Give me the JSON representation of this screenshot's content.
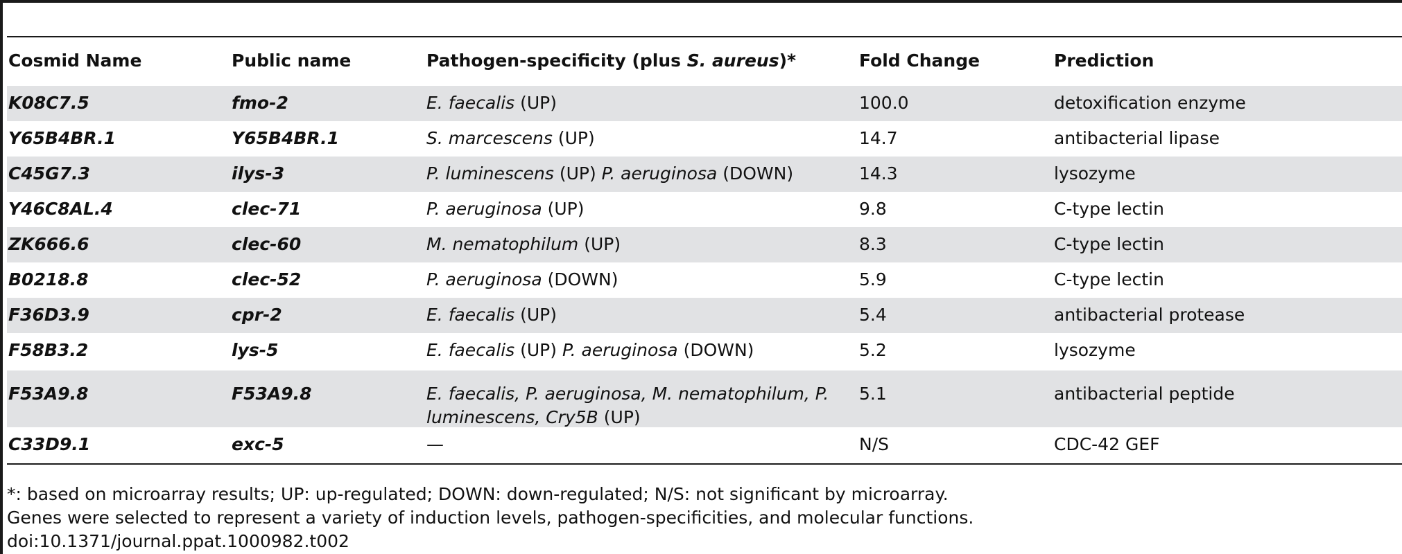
{
  "table": {
    "headers": {
      "cosmid": "Cosmid Name",
      "public": "Public name",
      "pathogen_prefix": "Pathogen-specificity (plus ",
      "pathogen_species": "S. aureus",
      "pathogen_suffix": ")*",
      "fold": "Fold Change",
      "prediction": "Prediction"
    },
    "rows": [
      {
        "cosmid": "K08C7.5",
        "public": "fmo-2",
        "p1_species": "E. faecalis",
        "p1_dir": " (UP)",
        "p2_species": "",
        "p2_dir": "",
        "fold": "100.0",
        "prediction": "detoxification enzyme"
      },
      {
        "cosmid": "Y65B4BR.1",
        "public": "Y65B4BR.1",
        "p1_species": "S. marcescens",
        "p1_dir": " (UP)",
        "p2_species": "",
        "p2_dir": "",
        "fold": "14.7",
        "prediction": "antibacterial lipase"
      },
      {
        "cosmid": "C45G7.3",
        "public": "ilys-3",
        "p1_species": "P. luminescens",
        "p1_dir": " (UP) ",
        "p2_species": "P. aeruginosa",
        "p2_dir": " (DOWN)",
        "fold": "14.3",
        "prediction": "lysozyme"
      },
      {
        "cosmid": "Y46C8AL.4",
        "public": "clec-71",
        "p1_species": "P. aeruginosa",
        "p1_dir": " (UP)",
        "p2_species": "",
        "p2_dir": "",
        "fold": "9.8",
        "prediction": "C-type lectin"
      },
      {
        "cosmid": "ZK666.6",
        "public": "clec-60",
        "p1_species": "M. nematophilum",
        "p1_dir": " (UP)",
        "p2_species": "",
        "p2_dir": "",
        "fold": "8.3",
        "prediction": "C-type lectin"
      },
      {
        "cosmid": "B0218.8",
        "public": "clec-52",
        "p1_species": "P. aeruginosa",
        "p1_dir": " (DOWN)",
        "p2_species": "",
        "p2_dir": "",
        "fold": "5.9",
        "prediction": "C-type lectin"
      },
      {
        "cosmid": "F36D3.9",
        "public": "cpr-2",
        "p1_species": "E. faecalis",
        "p1_dir": " (UP)",
        "p2_species": "",
        "p2_dir": "",
        "fold": "5.4",
        "prediction": "antibacterial protease"
      },
      {
        "cosmid": "F58B3.2",
        "public": "lys-5",
        "p1_species": "E. faecalis",
        "p1_dir": " (UP) ",
        "p2_species": "P. aeruginosa",
        "p2_dir": " (DOWN)",
        "fold": "5.2",
        "prediction": "lysozyme"
      }
    ],
    "multiline_row": {
      "cosmid": "F53A9.8",
      "public": "F53A9.8",
      "line1": "E. faecalis, P. aeruginosa, M. nematophilum, P.",
      "line2_species": "luminescens, Cry5B",
      "line2_dir": " (UP)",
      "fold": "5.1",
      "prediction": "antibacterial peptide"
    },
    "last_row": {
      "cosmid": "C33D9.1",
      "public": "exc-5",
      "pathogen": "—",
      "fold": "N/S",
      "prediction": "CDC-42 GEF"
    }
  },
  "footnotes": {
    "line1": "*: based on microarray results; UP: up-regulated; DOWN: down-regulated; N/S: not significant by microarray.",
    "line2": "Genes were selected to represent a variety of induction levels, pathogen-specificities, and molecular functions.",
    "doi": "doi:10.1371/journal.ppat.1000982.t002"
  }
}
